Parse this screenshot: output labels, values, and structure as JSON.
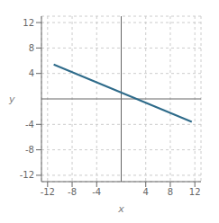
{
  "chart_data": {
    "type": "line",
    "x": [
      -11.0,
      11.5
    ],
    "series": [
      {
        "values": [
          5.4,
          -3.6
        ],
        "color": "#2e6b8a"
      }
    ],
    "xlim": [
      -13,
      13
    ],
    "ylim": [
      -13,
      13
    ],
    "xticks": [
      -12,
      -8,
      -4,
      4,
      8,
      12
    ],
    "yticks": [
      -12,
      -8,
      -4,
      4,
      8,
      12
    ],
    "xlabel": "x",
    "ylabel": "y",
    "grid": true
  }
}
